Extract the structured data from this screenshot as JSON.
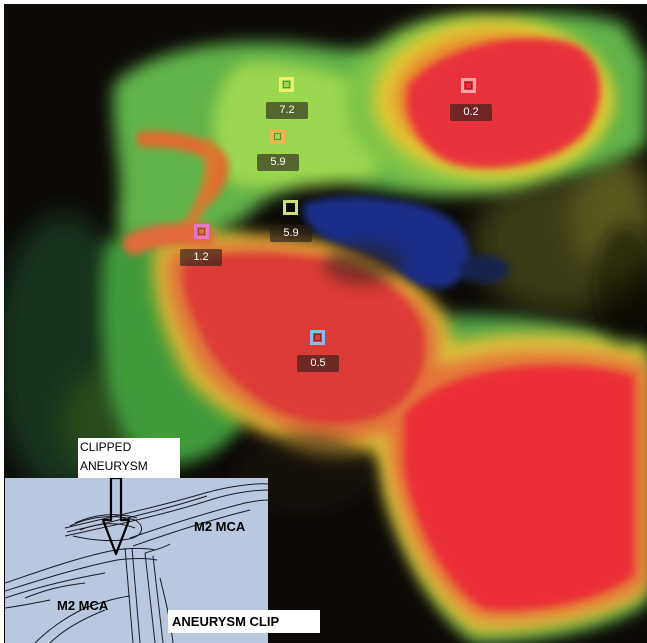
{
  "measurements": [
    {
      "label": "7.2",
      "color": "#f1ef6a"
    },
    {
      "label": "0.2",
      "color": "#f0a4a4"
    },
    {
      "label": "5.9",
      "color": "#f0b44e"
    },
    {
      "label": "5.9",
      "color": "#c9e27a"
    },
    {
      "label": "1.2",
      "color": "#e277c2"
    },
    {
      "label": "0.5",
      "color": "#8fb7ee"
    }
  ],
  "inset": {
    "clipped_aneurysm_label": "CLIPPED ANEURYSM",
    "m2_mca_right": "M2 MCA",
    "m2_mca_left": "M2 MCA",
    "aneurysm_clip_label": "ANEURYSM CLIP"
  }
}
